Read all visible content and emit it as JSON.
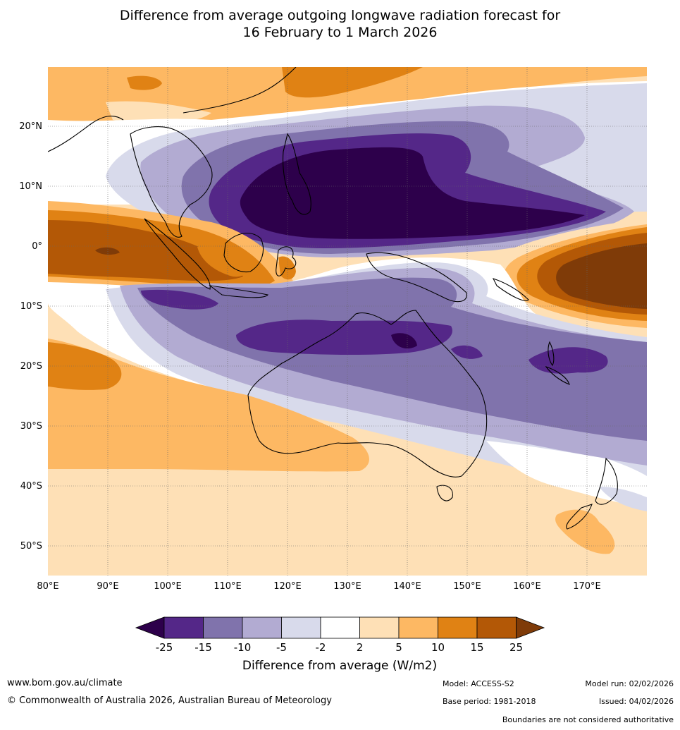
{
  "title": {
    "line1": "Difference from average outgoing longwave radiation forecast for",
    "line2": "16 February to 1 March 2026"
  },
  "map": {
    "lat_labels": [
      "20°N",
      "10°N",
      "0°",
      "10°S",
      "20°S",
      "30°S",
      "40°S",
      "50°S"
    ],
    "lon_labels": [
      "80°E",
      "90°E",
      "100°E",
      "110°E",
      "120°E",
      "130°E",
      "140°E",
      "150°E",
      "160°E",
      "170°E"
    ]
  },
  "legend": {
    "title": "Difference from average (W/m2)",
    "ticks": [
      "-25",
      "-15",
      "-10",
      "-5",
      "-2",
      "2",
      "5",
      "10",
      "15",
      "25"
    ],
    "colors": {
      "lt_m25": "#2d004b",
      "m25_m15": "#542788",
      "m15_m10": "#8073ac",
      "m10_m5": "#b2abd2",
      "m5_m2": "#d8daeb",
      "m2_p2": "#ffffff",
      "p2_p5": "#fee0b6",
      "p5_p10": "#fdb863",
      "p10_p15": "#e08214",
      "p15_p25": "#b35806",
      "gt_p25": "#7f3b08"
    }
  },
  "footer": {
    "website": "www.bom.gov.au/climate",
    "copyright": "© Commonwealth of Australia 2026, Australian Bureau of Meteorology",
    "model": "Model: ACCESS-S2",
    "base_period": "Base period: 1981-2018",
    "model_run": "Model run: 02/02/2026",
    "issued": "Issued: 04/02/2026",
    "boundaries": "Boundaries are not considered authoritative"
  }
}
